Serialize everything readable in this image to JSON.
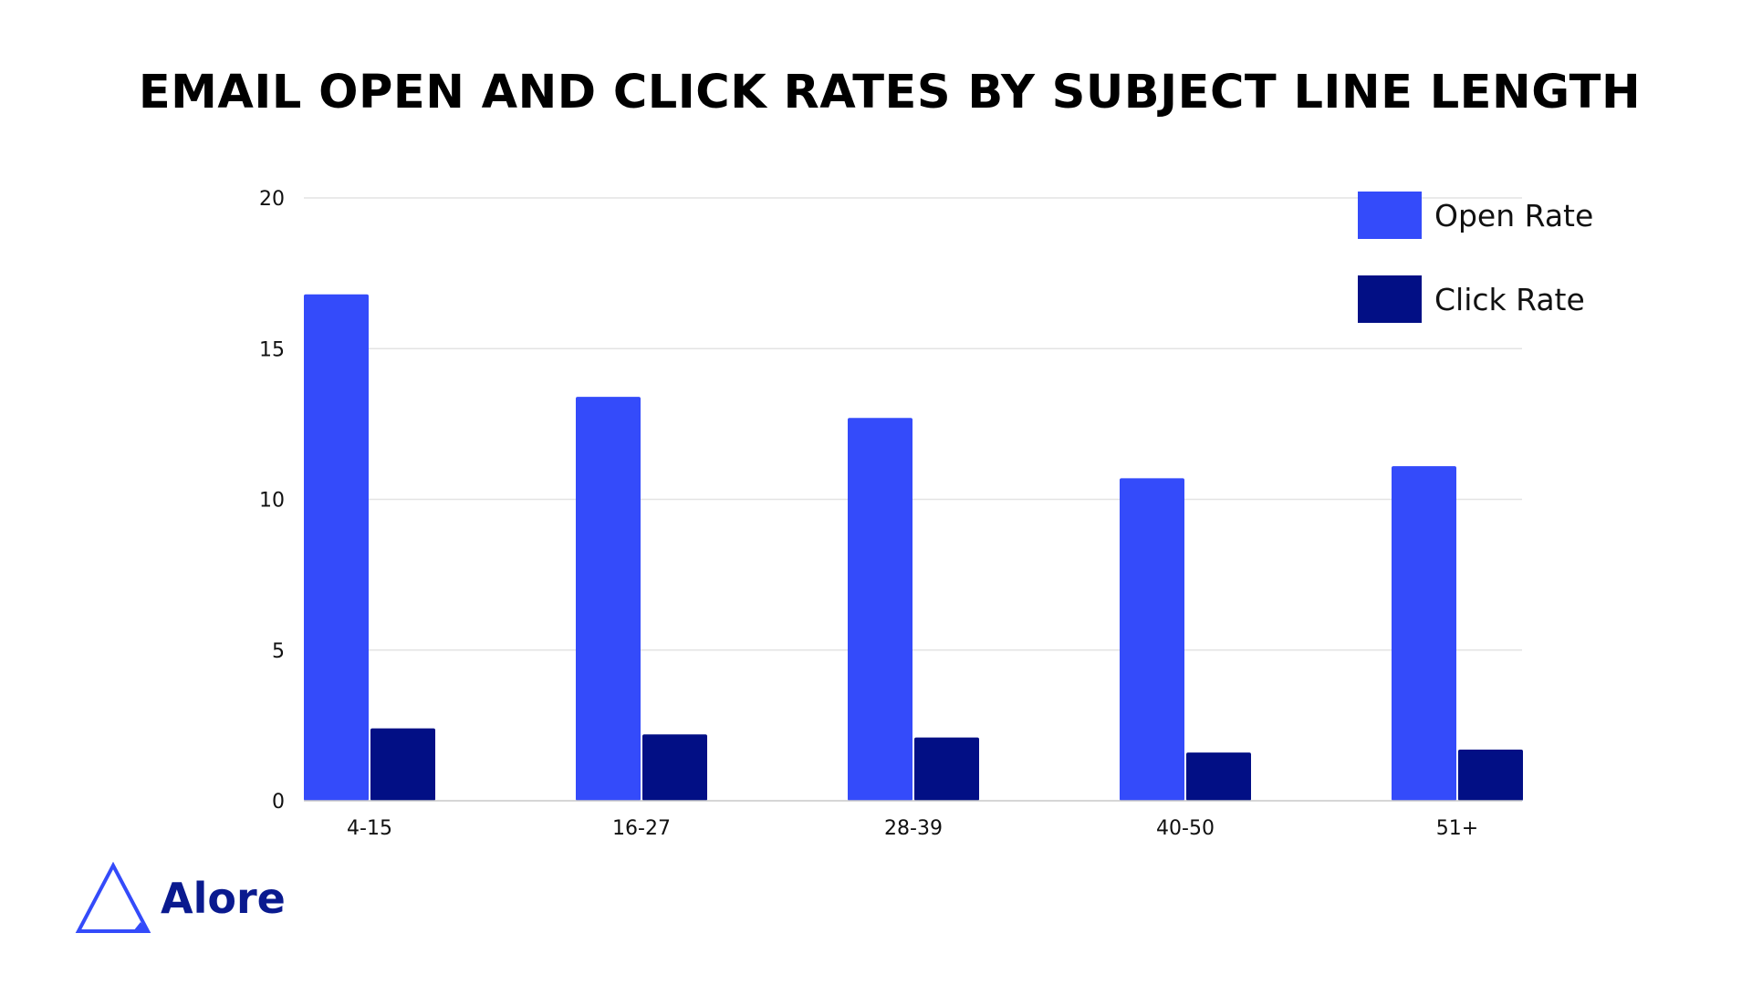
{
  "chart_data": {
    "type": "bar",
    "title": "EMAIL OPEN AND CLICK RATES BY SUBJECT LINE LENGTH",
    "categories": [
      "4-15",
      "16-27",
      "28-39",
      "40-50",
      "51+"
    ],
    "series": [
      {
        "name": "Open Rate",
        "values": [
          16.8,
          13.4,
          12.7,
          10.7,
          11.1
        ],
        "color": "#344bfa"
      },
      {
        "name": "Click Rate",
        "values": [
          2.4,
          2.2,
          2.1,
          1.6,
          1.7
        ],
        "color": "#020f85"
      }
    ],
    "ylim": [
      0,
      20
    ],
    "yticks": [
      "0",
      "5",
      "10",
      "15",
      "20"
    ],
    "grid": true,
    "legend_position": "top-right",
    "xlabel": "",
    "ylabel": ""
  },
  "brand": {
    "name": "Alore",
    "logo_icon": "triangle-logo-icon",
    "color": "#0a1a8f",
    "logo_color": "#344bfa"
  }
}
